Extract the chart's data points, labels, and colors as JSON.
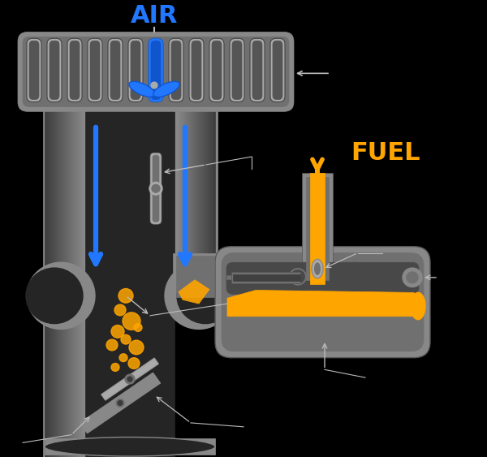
{
  "bg_color": "#000000",
  "body_gray": "#707070",
  "body_mid": "#888888",
  "body_light": "#aaaaaa",
  "body_dark": "#3a3a3a",
  "inner_dark": "#252525",
  "air_color": "#2277ff",
  "fuel_color": "#ffa500",
  "arrow_color": "#bbbbbb",
  "air_label": "AIR",
  "fuel_label": "FUEL"
}
